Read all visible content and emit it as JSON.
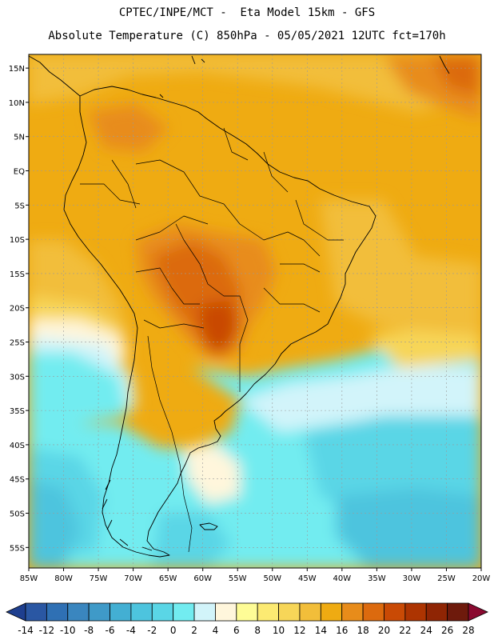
{
  "header": {
    "line1": "CPTEC/INPE/MCT -  Eta Model 15km - GFS",
    "line2": "Absolute Temperature (C) 850hPa - 05/05/2021 12UTC fct=170h"
  },
  "map": {
    "lat_labels": [
      "15N",
      "10N",
      "5N",
      "EQ",
      "5S",
      "10S",
      "15S",
      "20S",
      "25S",
      "30S",
      "35S",
      "40S",
      "45S",
      "50S",
      "55S"
    ],
    "lon_labels": [
      "85W",
      "80W",
      "75W",
      "70W",
      "65W",
      "60W",
      "55W",
      "50W",
      "45W",
      "40W",
      "35W",
      "30W",
      "25W",
      "20W"
    ],
    "lat_range": [
      17,
      -58
    ],
    "lon_range": [
      -85,
      -20
    ]
  },
  "colorbar": {
    "ticks": [
      "-14",
      "-12",
      "-10",
      "-8",
      "-6",
      "-4",
      "-2",
      "0",
      "2",
      "4",
      "6",
      "8",
      "10",
      "12",
      "14",
      "16",
      "18",
      "20",
      "22",
      "24",
      "26",
      "28"
    ],
    "colors": [
      "#1e3f8f",
      "#2a57a3",
      "#2f70b4",
      "#3a86bf",
      "#3f9ac8",
      "#43afd3",
      "#4dc4de",
      "#5ad6e6",
      "#72ecf0",
      "#d2f4fa",
      "#fff6dc",
      "#fefc96",
      "#fcea72",
      "#f7d658",
      "#f2be3a",
      "#efab12",
      "#e88c1a",
      "#dc6a0e",
      "#c94a05",
      "#ad3401",
      "#8f2504",
      "#6e1a0c",
      "#8a0a30"
    ]
  }
}
